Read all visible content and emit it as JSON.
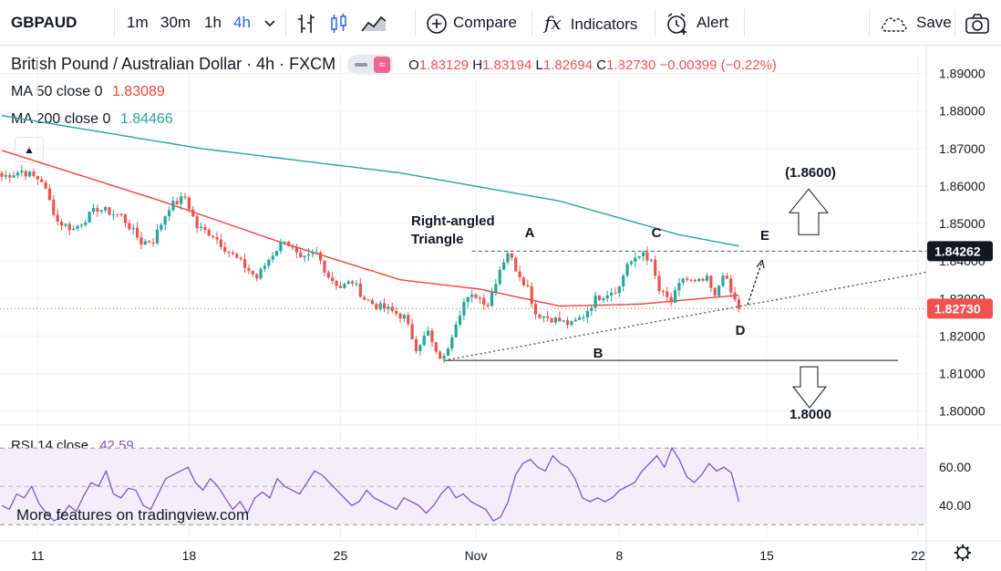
{
  "toolbar": {
    "symbol": "GBPAUD",
    "intervals": [
      "1m",
      "30m",
      "1h",
      "4h"
    ],
    "active_interval": "4h",
    "compare_label": "Compare",
    "indicators_label": "Indicators",
    "alert_label": "Alert",
    "save_label": "Save",
    "icons": [
      "chevron-down-icon",
      "bars-icon",
      "candles-icon",
      "area-icon",
      "plus-circle-icon",
      "fx-icon",
      "alarm-clock-icon",
      "cloud-icon",
      "camera-icon"
    ]
  },
  "header": {
    "title": "British Pound / Australian Dollar · 4h · FXCM",
    "ohlc": {
      "o_label": "O",
      "o": "1.83129",
      "h_label": "H",
      "h": "1.83194",
      "l_label": "L",
      "l": "1.82694",
      "c_label": "C",
      "c": "1.82730",
      "change": "−0.00399 (−0.22%)"
    },
    "ma50_label": "MA 50 close 0",
    "ma50_value": "1.83089",
    "ma200_label": "MA 200 close 0",
    "ma200_value": "1.84466",
    "rsi_label": "RSI 14 close",
    "rsi_value": "42.59"
  },
  "colors": {
    "up": "#26a69a",
    "down": "#ef5350",
    "ma50": "#f44336",
    "ma200": "#26a69a",
    "rsi": "#7e57c2",
    "rsi_band": "#f3eefb",
    "accent": "#2962ff"
  },
  "footer": {
    "promo": "More features on tradingview.com"
  },
  "chart_data": [
    {
      "type": "candlestick",
      "title": "British Pound / Australian Dollar",
      "x_ticks": [
        "11",
        "18",
        "25",
        "Nov",
        "8",
        "15",
        "22"
      ],
      "y_ticks": [
        "1.89000",
        "1.88000",
        "1.87000",
        "1.86000",
        "1.85000",
        "1.84000",
        "1.83000",
        "1.82000",
        "1.81000",
        "1.80000"
      ],
      "ylim": [
        1.7965,
        1.8955
      ],
      "price_labels": {
        "resistance": "1.84262",
        "last": "1.82730"
      },
      "resistance": 1.84262,
      "last_price": 1.8273,
      "support": 1.8135,
      "close_path": [
        [
          0,
          1.8625
        ],
        [
          5,
          1.864
        ],
        [
          10,
          1.8615
        ],
        [
          14,
          1.8505
        ],
        [
          18,
          1.8485
        ],
        [
          24,
          1.854
        ],
        [
          30,
          1.852
        ],
        [
          35,
          1.845
        ],
        [
          38,
          1.8455
        ],
        [
          42,
          1.8545
        ],
        [
          46,
          1.857
        ],
        [
          49,
          1.849
        ],
        [
          53,
          1.847
        ],
        [
          56,
          1.8435
        ],
        [
          60,
          1.8395
        ],
        [
          64,
          1.8355
        ],
        [
          67,
          1.8405
        ],
        [
          71,
          1.846
        ],
        [
          75,
          1.84
        ],
        [
          79,
          1.842
        ],
        [
          82,
          1.836
        ],
        [
          85,
          1.833
        ],
        [
          88,
          1.8345
        ],
        [
          91,
          1.83
        ],
        [
          94,
          1.828
        ],
        [
          97,
          1.827
        ],
        [
          101,
          1.825
        ],
        [
          104,
          1.817
        ],
        [
          107,
          1.821
        ],
        [
          109,
          1.815
        ],
        [
          111,
          1.814
        ],
        [
          114,
          1.824
        ],
        [
          116,
          1.829
        ],
        [
          119,
          1.831
        ],
        [
          122,
          1.8285
        ],
        [
          125,
          1.838
        ],
        [
          127,
          1.8425
        ],
        [
          129,
          1.838
        ],
        [
          132,
          1.833
        ],
        [
          134,
          1.826
        ],
        [
          137,
          1.825
        ],
        [
          140,
          1.824
        ],
        [
          143,
          1.823
        ],
        [
          146,
          1.8255
        ],
        [
          149,
          1.83
        ],
        [
          152,
          1.8315
        ],
        [
          155,
          1.833
        ],
        [
          157,
          1.8395
        ],
        [
          159,
          1.84
        ],
        [
          161,
          1.8425
        ],
        [
          163,
          1.8395
        ],
        [
          165,
          1.832
        ],
        [
          168,
          1.829
        ],
        [
          171,
          1.8355
        ],
        [
          174,
          1.834
        ],
        [
          177,
          1.835
        ],
        [
          179,
          1.83
        ],
        [
          181,
          1.837
        ],
        [
          183,
          1.8315
        ],
        [
          185,
          1.8273
        ]
      ],
      "ma50": [
        [
          0,
          1.8695
        ],
        [
          40,
          1.856
        ],
        [
          70,
          1.845
        ],
        [
          100,
          1.835
        ],
        [
          120,
          1.8325
        ],
        [
          140,
          1.828
        ],
        [
          160,
          1.8285
        ],
        [
          185,
          1.8309
        ]
      ],
      "ma200": [
        [
          0,
          1.8788
        ],
        [
          50,
          1.87
        ],
        [
          100,
          1.8635
        ],
        [
          140,
          1.856
        ],
        [
          170,
          1.847
        ],
        [
          185,
          1.844
        ]
      ],
      "annotations": [
        {
          "text": "Right-angled",
          "kind": "label"
        },
        {
          "text": "Triangle",
          "kind": "label"
        },
        {
          "text": "A",
          "kind": "point"
        },
        {
          "text": "B",
          "kind": "point"
        },
        {
          "text": "C",
          "kind": "point"
        },
        {
          "text": "D",
          "kind": "point"
        },
        {
          "text": "E",
          "kind": "point"
        },
        {
          "text": "(1.8600)",
          "kind": "target-up",
          "value": 1.86
        },
        {
          "text": "1.8000",
          "kind": "target-down",
          "value": 1.8
        }
      ],
      "grid": true,
      "legend": "top-left"
    },
    {
      "type": "line",
      "name": "RSI 14 close",
      "y_ticks": [
        "60.00",
        "40.00"
      ],
      "ylim": [
        22,
        82
      ],
      "bands": [
        30,
        50,
        70
      ],
      "values": [
        40,
        38,
        46,
        44,
        50,
        41,
        36,
        32,
        34,
        40,
        37,
        45,
        52,
        50,
        58,
        46,
        44,
        49,
        48,
        40,
        38,
        46,
        54,
        56,
        58,
        60,
        52,
        48,
        54,
        50,
        44,
        38,
        42,
        36,
        44,
        47,
        44,
        54,
        50,
        48,
        46,
        52,
        58,
        56,
        52,
        48,
        44,
        40,
        42,
        48,
        44,
        42,
        40,
        38,
        44,
        42,
        40,
        36,
        40,
        46,
        50,
        44,
        46,
        42,
        40,
        38,
        32,
        34,
        42,
        56,
        62,
        64,
        60,
        58,
        66,
        62,
        60,
        54,
        44,
        42,
        44,
        42,
        44,
        48,
        50,
        52,
        58,
        62,
        66,
        60,
        70,
        64,
        55,
        52,
        56,
        62,
        58,
        60,
        57,
        42
      ]
    }
  ]
}
